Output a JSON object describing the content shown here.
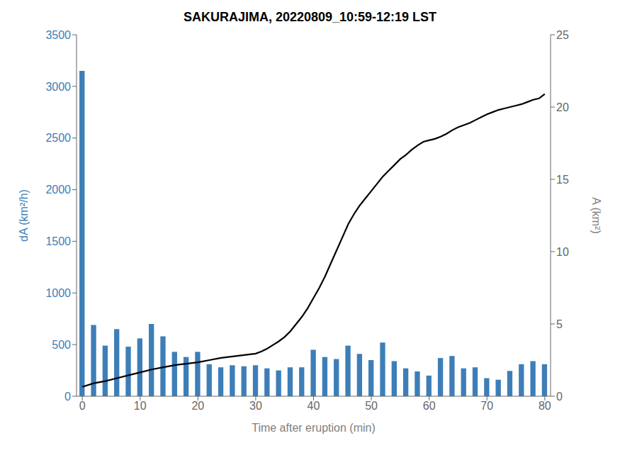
{
  "chart_data": {
    "type": "bar_line",
    "title": "SAKURAJIMA, 20220809_10:59-12:19 LST",
    "xlabel": "Time after eruption (min)",
    "ylabel": "dA (km²/h)",
    "y2label": "A (km²)",
    "xlim": [
      -1,
      81
    ],
    "xticks": [
      0,
      10,
      20,
      30,
      40,
      50,
      60,
      70,
      80
    ],
    "ylim": [
      0,
      3500
    ],
    "yticks": [
      0,
      500,
      1000,
      1500,
      2000,
      2500,
      3000,
      3500
    ],
    "y2lim": [
      0,
      25
    ],
    "y2ticks": [
      0,
      5,
      10,
      15,
      20,
      25
    ],
    "grid": false,
    "series": [
      {
        "type": "bar",
        "color": "#3d7eb8",
        "x": [
          0,
          2,
          4,
          6,
          8,
          10,
          12,
          14,
          16,
          18,
          20,
          22,
          24,
          26,
          28,
          30,
          32,
          34,
          36,
          38,
          40,
          42,
          44,
          46,
          48,
          50,
          52,
          54,
          56,
          58,
          60,
          62,
          64,
          66,
          68,
          70,
          72,
          74,
          76,
          78,
          80
        ],
        "values": [
          3150,
          690,
          490,
          650,
          480,
          560,
          700,
          580,
          430,
          380,
          430,
          310,
          280,
          300,
          290,
          300,
          270,
          250,
          280,
          280,
          450,
          380,
          360,
          490,
          410,
          350,
          520,
          340,
          270,
          240,
          200,
          370,
          390,
          270,
          280,
          175,
          160,
          245,
          310,
          340,
          310
        ]
      },
      {
        "type": "line",
        "color": "#000000",
        "axis": "y2",
        "x": [
          0,
          2,
          4,
          6,
          8,
          10,
          12,
          14,
          16,
          18,
          20,
          22,
          24,
          26,
          28,
          30,
          31,
          32,
          33,
          34,
          35,
          36,
          37,
          38,
          39,
          40,
          41,
          42,
          43,
          44,
          45,
          46,
          47,
          48,
          49,
          50,
          51,
          52,
          53,
          54,
          55,
          56,
          57,
          58,
          59,
          60,
          61,
          62,
          63,
          64,
          65,
          66,
          67,
          68,
          69,
          70,
          71,
          72,
          73,
          74,
          75,
          76,
          77,
          78,
          79,
          80
        ],
        "values": [
          0.65,
          0.9,
          1.05,
          1.25,
          1.45,
          1.65,
          1.85,
          2.0,
          2.15,
          2.25,
          2.35,
          2.5,
          2.65,
          2.75,
          2.85,
          2.95,
          3.1,
          3.3,
          3.55,
          3.8,
          4.1,
          4.5,
          5.0,
          5.5,
          6.1,
          6.8,
          7.5,
          8.3,
          9.2,
          10.1,
          11.0,
          11.9,
          12.6,
          13.2,
          13.7,
          14.2,
          14.7,
          15.2,
          15.6,
          16.0,
          16.4,
          16.7,
          17.05,
          17.35,
          17.6,
          17.7,
          17.8,
          17.95,
          18.15,
          18.4,
          18.6,
          18.75,
          18.9,
          19.1,
          19.3,
          19.5,
          19.65,
          19.8,
          19.9,
          20.0,
          20.1,
          20.2,
          20.35,
          20.5,
          20.6,
          20.9
        ]
      }
    ]
  }
}
